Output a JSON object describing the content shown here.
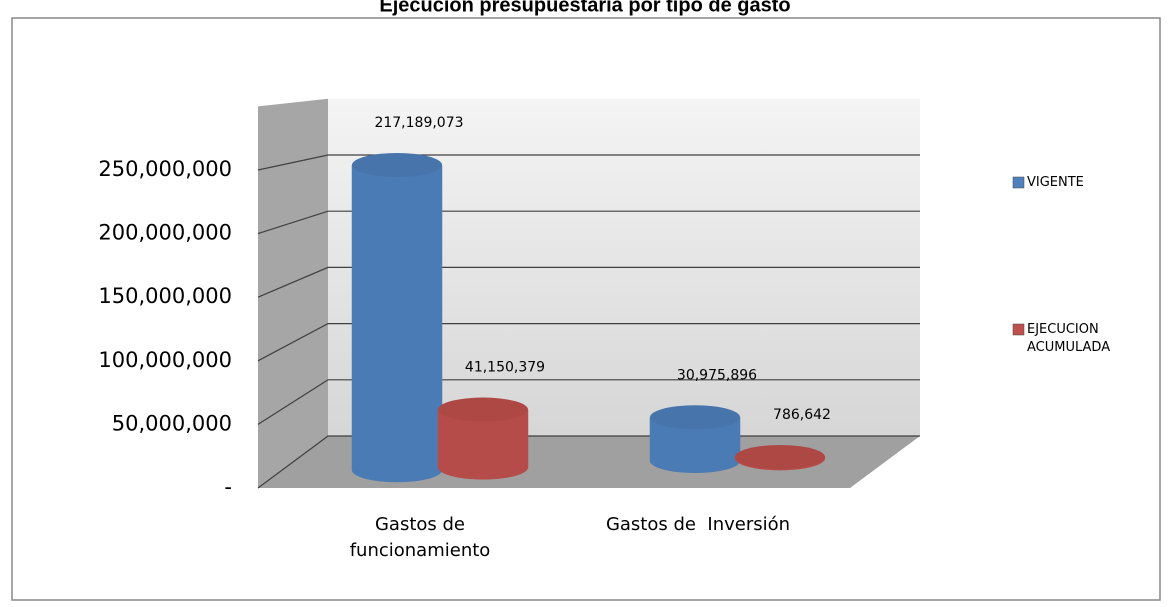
{
  "chart_data": {
    "type": "bar3d",
    "title": "Ejecución presupuestaria  por tipo de gasto",
    "categories": [
      "Gastos de funcionamiento",
      "Gastos de  Inversión"
    ],
    "series": [
      {
        "name": "VIGENTE",
        "color": "#4f81bd",
        "values": [
          217189073,
          30975896
        ],
        "value_labels": [
          "217,189,073",
          "30,975,896"
        ]
      },
      {
        "name": "EJECUCION ACUMULADA",
        "color": "#c0504d",
        "values": [
          41150379,
          786642
        ],
        "value_labels": [
          "41,150,379",
          "786,642"
        ]
      }
    ],
    "ylim": [
      0,
      300000000
    ],
    "yticks": [
      {
        "value": 0,
        "label": "-"
      },
      {
        "value": 50000000,
        "label": "50,000,000"
      },
      {
        "value": 100000000,
        "label": "100,000,000"
      },
      {
        "value": 150000000,
        "label": "150,000,000"
      },
      {
        "value": 200000000,
        "label": "200,000,000"
      },
      {
        "value": 250000000,
        "label": "250,000,000"
      }
    ],
    "grid": true,
    "legend": "right"
  }
}
